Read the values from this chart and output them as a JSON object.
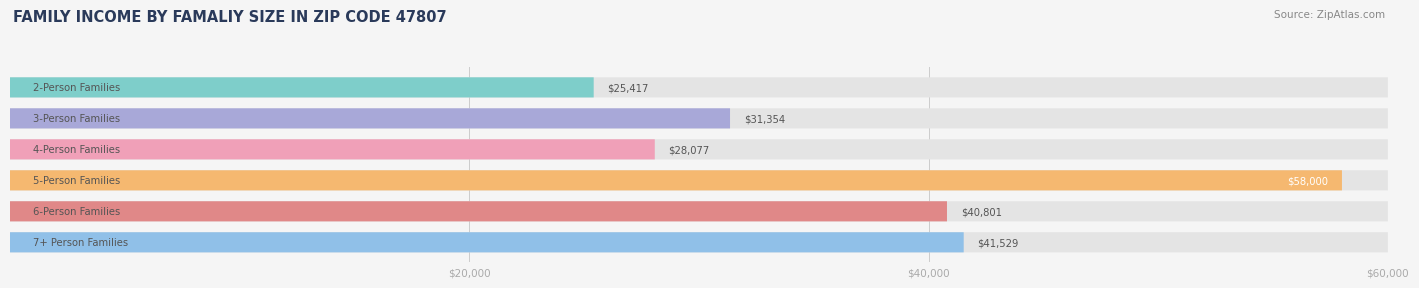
{
  "title": "FAMILY INCOME BY FAMALIY SIZE IN ZIP CODE 47807",
  "source": "Source: ZipAtlas.com",
  "categories": [
    "2-Person Families",
    "3-Person Families",
    "4-Person Families",
    "5-Person Families",
    "6-Person Families",
    "7+ Person Families"
  ],
  "values": [
    25417,
    31354,
    28077,
    58000,
    40801,
    41529
  ],
  "bar_colors": [
    "#7ececa",
    "#a8a8d8",
    "#f0a0b8",
    "#f5b870",
    "#e08888",
    "#90c0e8"
  ],
  "label_colors": [
    "#555555",
    "#555555",
    "#555555",
    "#ffffff",
    "#555555",
    "#555555"
  ],
  "value_labels": [
    "$25,417",
    "$31,354",
    "$28,077",
    "$58,000",
    "$40,801",
    "$41,529"
  ],
  "xmin": 0,
  "xmax": 60000,
  "xticks": [
    0,
    20000,
    40000,
    60000
  ],
  "xtick_labels": [
    "$20,000",
    "$40,000",
    "$60,000"
  ],
  "background_color": "#f5f5f5",
  "bar_bg_color": "#e4e4e4",
  "title_color": "#2a3a5a",
  "source_color": "#888888",
  "tick_label_color": "#aaaaaa",
  "category_label_color": "#555555",
  "title_fontsize": 10.5,
  "bar_height": 0.65,
  "figsize": [
    14.06,
    3.05
  ]
}
